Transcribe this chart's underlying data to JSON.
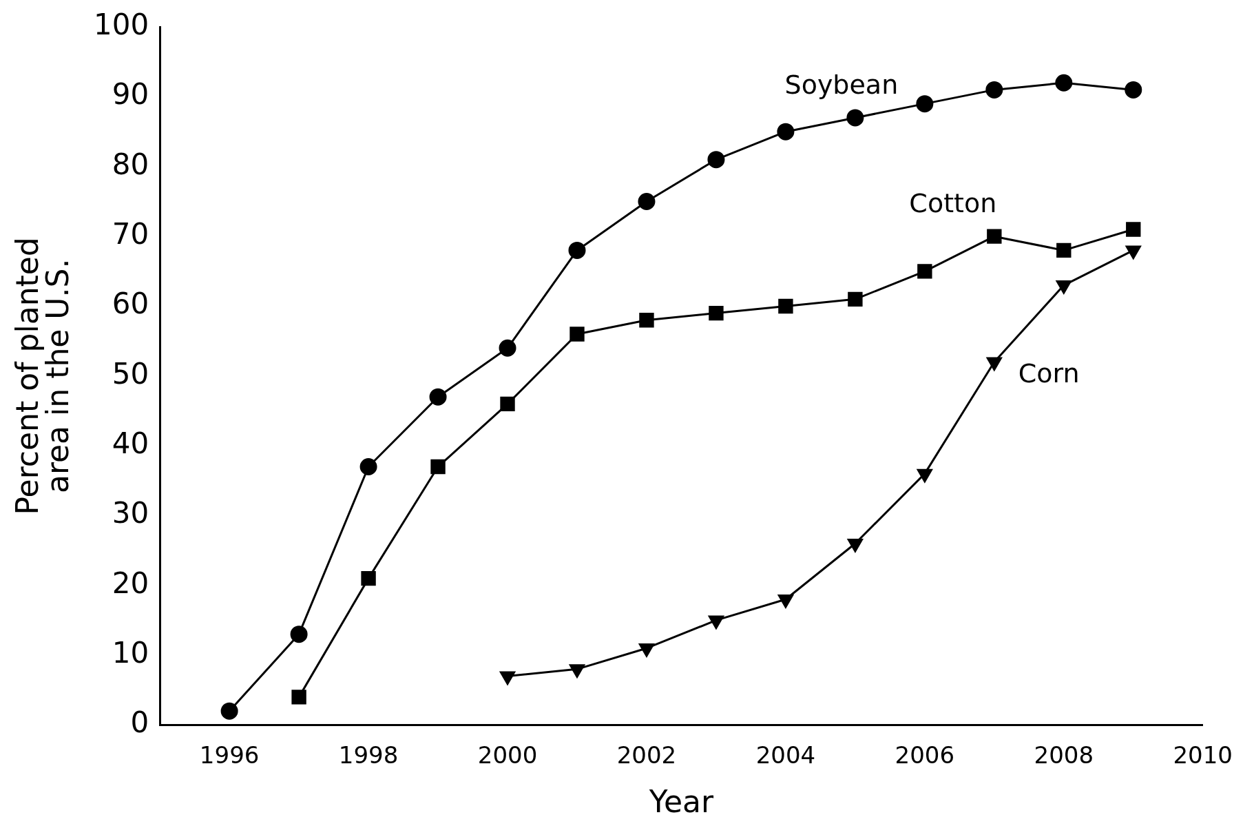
{
  "chart_data": {
    "type": "line",
    "xlabel": "Year",
    "ylabel": "Percent of planted\narea in the U.S.",
    "xlim": [
      1995,
      2010
    ],
    "xticks": [
      1996,
      1998,
      2000,
      2002,
      2004,
      2006,
      2008,
      2010
    ],
    "ylim": [
      0,
      100
    ],
    "yticks": [
      0,
      10,
      20,
      30,
      40,
      50,
      60,
      70,
      80,
      90,
      100
    ],
    "grid": false,
    "legend": false,
    "line_style": "solid",
    "series": [
      {
        "name": "Soybean",
        "color": "#000000",
        "marker": "circle",
        "x": [
          1996,
          1997,
          1998,
          1999,
          2000,
          2001,
          2002,
          2003,
          2004,
          2005,
          2006,
          2007,
          2008,
          2009
        ],
        "values": [
          2,
          13,
          37,
          47,
          54,
          68,
          75,
          81,
          85,
          87,
          89,
          91,
          92,
          91
        ]
      },
      {
        "name": "Cotton",
        "color": "#000000",
        "marker": "square",
        "x": [
          1997,
          1998,
          1999,
          2000,
          2001,
          2002,
          2003,
          2004,
          2005,
          2006,
          2007,
          2008,
          2009
        ],
        "values": [
          4,
          21,
          37,
          46,
          56,
          58,
          59,
          60,
          61,
          65,
          70,
          68,
          71
        ]
      },
      {
        "name": "Corn",
        "color": "#000000",
        "marker": "triangle",
        "x": [
          2000,
          2001,
          2002,
          2003,
          2004,
          2005,
          2006,
          2007,
          2008,
          2009
        ],
        "values": [
          7,
          8,
          11,
          15,
          18,
          26,
          36,
          52,
          63,
          68
        ]
      }
    ]
  }
}
